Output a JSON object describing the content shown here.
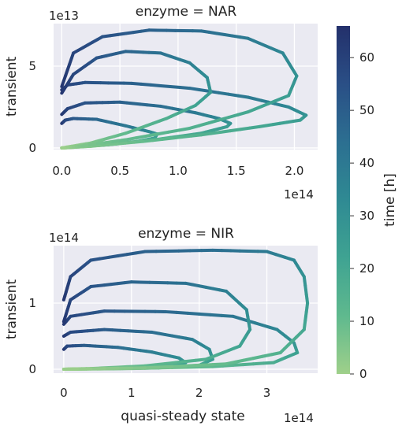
{
  "colorbar": {
    "label": "time [h]",
    "min": 0,
    "max": 66,
    "ticks": [
      0,
      10,
      20,
      30,
      40,
      50,
      60
    ],
    "colormap_stops": [
      "#9fd08a",
      "#5fb98e",
      "#3fa392",
      "#2f8a93",
      "#2c6f91",
      "#2a4f86",
      "#23306b"
    ]
  },
  "colors": {
    "panel_background": "#eaeaf2",
    "grid": "#ffffff"
  },
  "chart_data": [
    {
      "type": "line",
      "title": "enzyme = NAR",
      "xlabel": "",
      "ylabel": "transient",
      "x_offset_label": "1e14",
      "y_offset_label": "1e13",
      "x_unit_scale": 100000000000000.0,
      "y_unit_scale": 10000000000000.0,
      "xlim": [
        -0.07,
        2.2
      ],
      "ylim": [
        -0.1,
        7.6
      ],
      "xticks": [
        0.0,
        0.5,
        1.0,
        1.5,
        2.0
      ],
      "xtick_labels": [
        "0.0",
        "0.5",
        "1.0",
        "1.5",
        "2.0"
      ],
      "yticks": [
        0,
        5
      ],
      "ytick_labels": [
        "0",
        "5"
      ],
      "grid": true,
      "series": [
        {
          "points": [
            [
              0.0,
              1.5
            ],
            [
              0.03,
              1.7
            ],
            [
              0.1,
              1.8
            ],
            [
              0.3,
              1.75
            ],
            [
              0.55,
              1.35
            ],
            [
              0.75,
              1.0
            ],
            [
              0.82,
              0.85
            ],
            [
              0.8,
              0.6
            ],
            [
              0.65,
              0.4
            ],
            [
              0.4,
              0.2
            ],
            [
              0.15,
              0.06
            ],
            [
              0.0,
              0.0
            ]
          ]
        },
        {
          "points": [
            [
              0.0,
              2.05
            ],
            [
              0.05,
              2.4
            ],
            [
              0.2,
              2.75
            ],
            [
              0.5,
              2.8
            ],
            [
              0.85,
              2.55
            ],
            [
              1.15,
              2.15
            ],
            [
              1.35,
              1.8
            ],
            [
              1.45,
              1.5
            ],
            [
              1.42,
              1.3
            ],
            [
              1.2,
              0.9
            ],
            [
              0.8,
              0.5
            ],
            [
              0.4,
              0.2
            ],
            [
              0.1,
              0.05
            ],
            [
              0.0,
              0.0
            ]
          ]
        },
        {
          "points": [
            [
              0.0,
              3.55
            ],
            [
              0.05,
              3.85
            ],
            [
              0.2,
              4.0
            ],
            [
              0.6,
              3.95
            ],
            [
              1.1,
              3.65
            ],
            [
              1.6,
              3.1
            ],
            [
              1.95,
              2.5
            ],
            [
              2.1,
              2.0
            ],
            [
              2.05,
              1.7
            ],
            [
              1.7,
              1.3
            ],
            [
              1.2,
              0.8
            ],
            [
              0.7,
              0.4
            ],
            [
              0.25,
              0.1
            ],
            [
              0.0,
              0.0
            ]
          ]
        },
        {
          "points": [
            [
              0.0,
              3.35
            ],
            [
              0.1,
              4.5
            ],
            [
              0.3,
              5.5
            ],
            [
              0.55,
              5.9
            ],
            [
              0.85,
              5.8
            ],
            [
              1.1,
              5.2
            ],
            [
              1.25,
              4.3
            ],
            [
              1.28,
              3.4
            ],
            [
              1.15,
              2.6
            ],
            [
              0.9,
              1.8
            ],
            [
              0.55,
              0.9
            ],
            [
              0.25,
              0.3
            ],
            [
              0.0,
              0.0
            ]
          ]
        },
        {
          "points": [
            [
              0.0,
              3.75
            ],
            [
              0.1,
              5.8
            ],
            [
              0.35,
              6.8
            ],
            [
              0.75,
              7.2
            ],
            [
              1.2,
              7.15
            ],
            [
              1.6,
              6.7
            ],
            [
              1.9,
              5.8
            ],
            [
              2.02,
              4.4
            ],
            [
              1.95,
              3.2
            ],
            [
              1.6,
              2.2
            ],
            [
              1.1,
              1.2
            ],
            [
              0.55,
              0.5
            ],
            [
              0.15,
              0.1
            ],
            [
              0.0,
              0.0
            ]
          ]
        }
      ]
    },
    {
      "type": "line",
      "title": "enzyme = NIR",
      "xlabel": "quasi-steady state",
      "ylabel": "transient",
      "x_offset_label": "1e14",
      "y_offset_label": "1e14",
      "x_unit_scale": 100000000000000.0,
      "y_unit_scale": 100000000000000.0,
      "xlim": [
        -0.15,
        3.75
      ],
      "ylim": [
        -0.06,
        1.87
      ],
      "xticks": [
        0,
        1,
        2,
        3
      ],
      "xtick_labels": [
        "0",
        "1",
        "2",
        "3"
      ],
      "yticks": [
        0,
        1
      ],
      "ytick_labels": [
        "0",
        "1"
      ],
      "grid": true,
      "series": [
        {
          "points": [
            [
              0.0,
              0.3
            ],
            [
              0.05,
              0.35
            ],
            [
              0.3,
              0.36
            ],
            [
              0.8,
              0.33
            ],
            [
              1.3,
              0.26
            ],
            [
              1.7,
              0.17
            ],
            [
              1.8,
              0.1
            ],
            [
              1.6,
              0.05
            ],
            [
              1.0,
              0.02
            ],
            [
              0.4,
              0.005
            ],
            [
              0.0,
              0.0
            ]
          ]
        },
        {
          "points": [
            [
              0.0,
              0.5
            ],
            [
              0.1,
              0.56
            ],
            [
              0.6,
              0.6
            ],
            [
              1.3,
              0.56
            ],
            [
              1.9,
              0.45
            ],
            [
              2.15,
              0.3
            ],
            [
              2.2,
              0.15
            ],
            [
              2.0,
              0.06
            ],
            [
              1.4,
              0.02
            ],
            [
              0.6,
              0.005
            ],
            [
              0.0,
              0.0
            ]
          ]
        },
        {
          "points": [
            [
              0.0,
              0.68
            ],
            [
              0.1,
              0.8
            ],
            [
              0.6,
              0.88
            ],
            [
              1.5,
              0.87
            ],
            [
              2.5,
              0.8
            ],
            [
              3.15,
              0.6
            ],
            [
              3.4,
              0.4
            ],
            [
              3.45,
              0.25
            ],
            [
              3.1,
              0.1
            ],
            [
              2.2,
              0.04
            ],
            [
              1.0,
              0.01
            ],
            [
              0.0,
              0.0
            ]
          ]
        },
        {
          "points": [
            [
              0.0,
              0.72
            ],
            [
              0.1,
              1.05
            ],
            [
              0.4,
              1.25
            ],
            [
              1.0,
              1.32
            ],
            [
              1.8,
              1.3
            ],
            [
              2.4,
              1.18
            ],
            [
              2.7,
              0.9
            ],
            [
              2.75,
              0.6
            ],
            [
              2.6,
              0.35
            ],
            [
              2.1,
              0.15
            ],
            [
              1.2,
              0.05
            ],
            [
              0.4,
              0.01
            ],
            [
              0.0,
              0.0
            ]
          ]
        },
        {
          "points": [
            [
              0.0,
              1.05
            ],
            [
              0.1,
              1.4
            ],
            [
              0.4,
              1.65
            ],
            [
              1.2,
              1.78
            ],
            [
              2.2,
              1.8
            ],
            [
              3.0,
              1.78
            ],
            [
              3.4,
              1.65
            ],
            [
              3.55,
              1.4
            ],
            [
              3.6,
              1.0
            ],
            [
              3.55,
              0.6
            ],
            [
              3.2,
              0.25
            ],
            [
              2.4,
              0.08
            ],
            [
              1.2,
              0.02
            ],
            [
              0.0,
              0.0
            ]
          ]
        }
      ]
    }
  ]
}
